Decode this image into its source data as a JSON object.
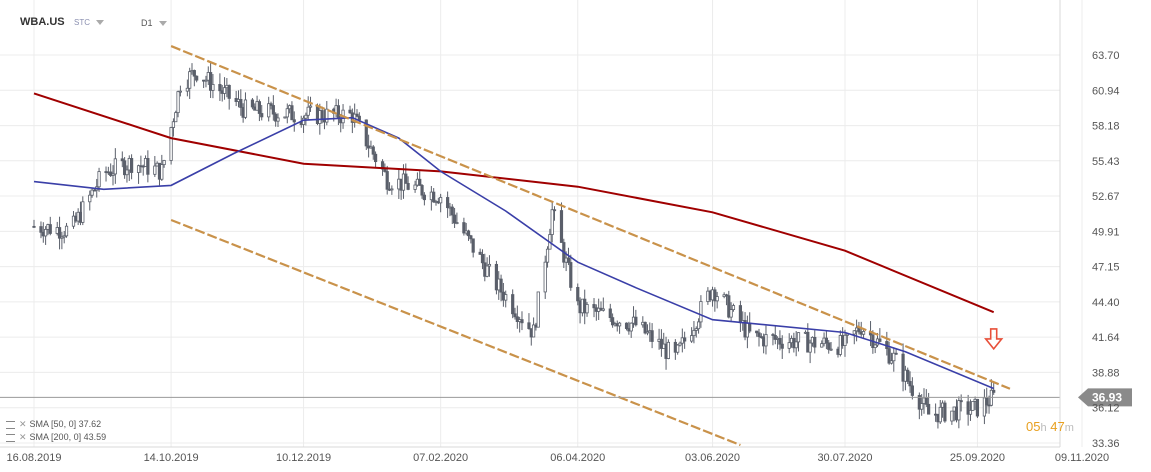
{
  "header": {
    "symbol": "WBA.US",
    "instrument_type": "STC",
    "timeframe": "D1"
  },
  "legend": [
    {
      "label": "SMA [50, 0] 37.62",
      "color": "#3a3fa8"
    },
    {
      "label": "SMA [200, 0] 43.59",
      "color": "#a00000"
    }
  ],
  "countdown": {
    "hours": "05",
    "h_unit": "h",
    "minutes": "47",
    "m_unit": "m"
  },
  "chart_data": {
    "type": "candlestick",
    "timeframe": "D1",
    "y_ticks": [
      "63.70",
      "60.94",
      "58.18",
      "55.43",
      "52.67",
      "49.91",
      "47.15",
      "44.40",
      "41.64",
      "38.88",
      "36.12",
      "33.36"
    ],
    "x_ticks": [
      "16.08.2019",
      "14.10.2019",
      "10.12.2019",
      "07.02.2020",
      "06.04.2020",
      "03.06.2020",
      "30.07.2020",
      "25.09.2020",
      "09.11.2020"
    ],
    "ylim": [
      33.0,
      65.5
    ],
    "current_price": "36.93",
    "current_price_value": 36.93,
    "approx_closes": [
      {
        "date": "16.08.2019",
        "close": 50.3
      },
      {
        "date": "01.09.2019",
        "close": 50.0
      },
      {
        "date": "15.09.2019",
        "close": 54.5
      },
      {
        "date": "27.09.2019",
        "close": 55.3
      },
      {
        "date": "10.10.2019",
        "close": 54.6
      },
      {
        "date": "18.10.2019",
        "close": 61.5
      },
      {
        "date": "25.10.2019",
        "close": 62.4
      },
      {
        "date": "15.11.2019",
        "close": 59.4
      },
      {
        "date": "10.12.2019",
        "close": 59.0
      },
      {
        "date": "31.12.2019",
        "close": 59.0
      },
      {
        "date": "15.01.2020",
        "close": 54.0
      },
      {
        "date": "07.02.2020",
        "close": 52.7
      },
      {
        "date": "01.03.2020",
        "close": 46.0
      },
      {
        "date": "18.03.2020",
        "close": 42.0
      },
      {
        "date": "26.03.2020",
        "close": 51.5
      },
      {
        "date": "06.04.2020",
        "close": 44.0
      },
      {
        "date": "01.05.2020",
        "close": 42.6
      },
      {
        "date": "18.05.2020",
        "close": 40.0
      },
      {
        "date": "03.06.2020",
        "close": 45.5
      },
      {
        "date": "20.06.2020",
        "close": 41.6
      },
      {
        "date": "30.07.2020",
        "close": 41.0
      },
      {
        "date": "06.08.2020",
        "close": 42.5
      },
      {
        "date": "20.08.2020",
        "close": 40.0
      },
      {
        "date": "04.09.2020",
        "close": 35.6
      },
      {
        "date": "25.09.2020",
        "close": 36.1
      },
      {
        "date": "02.10.2020",
        "close": 36.93
      }
    ],
    "sma_50": [
      {
        "date": "16.08.2019",
        "value": 53.8
      },
      {
        "date": "15.09.2019",
        "value": 53.2
      },
      {
        "date": "14.10.2019",
        "value": 53.5
      },
      {
        "date": "10.11.2019",
        "value": 56.0
      },
      {
        "date": "10.12.2019",
        "value": 58.6
      },
      {
        "date": "31.12.2019",
        "value": 58.8
      },
      {
        "date": "20.01.2020",
        "value": 57.2
      },
      {
        "date": "07.02.2020",
        "value": 54.6
      },
      {
        "date": "06.03.2020",
        "value": 51.5
      },
      {
        "date": "06.04.2020",
        "value": 47.5
      },
      {
        "date": "01.05.2020",
        "value": 45.5
      },
      {
        "date": "03.06.2020",
        "value": 43.0
      },
      {
        "date": "30.07.2020",
        "value": 42.0
      },
      {
        "date": "25.08.2020",
        "value": 40.5
      },
      {
        "date": "02.10.2020",
        "value": 37.62
      }
    ],
    "sma_200": [
      {
        "date": "16.08.2019",
        "value": 60.7
      },
      {
        "date": "14.10.2019",
        "value": 57.2
      },
      {
        "date": "10.12.2019",
        "value": 55.2
      },
      {
        "date": "07.02.2020",
        "value": 54.6
      },
      {
        "date": "06.04.2020",
        "value": 53.4
      },
      {
        "date": "03.06.2020",
        "value": 51.4
      },
      {
        "date": "30.07.2020",
        "value": 48.4
      },
      {
        "date": "02.10.2020",
        "value": 43.59
      }
    ],
    "trend_channel": {
      "upper": [
        {
          "date": "14.10.2019",
          "value": 64.4
        },
        {
          "date": "09.10.2020",
          "value": 37.6
        }
      ],
      "lower": [
        {
          "date": "14.10.2019",
          "value": 50.8
        },
        {
          "date": "15.06.2020",
          "value": 33.2
        }
      ]
    },
    "price_line": 36.93,
    "signal_arrow": {
      "date": "02.10.2020",
      "direction": "down"
    }
  },
  "colors": {
    "sma_50": "#3a3fa8",
    "sma_200": "#a00000",
    "channel": "#c9924a",
    "candle": "#5a5f6a",
    "price_badge": "#8a8a8a",
    "arrow": "#e8503a",
    "countdown": "#e8a020"
  }
}
